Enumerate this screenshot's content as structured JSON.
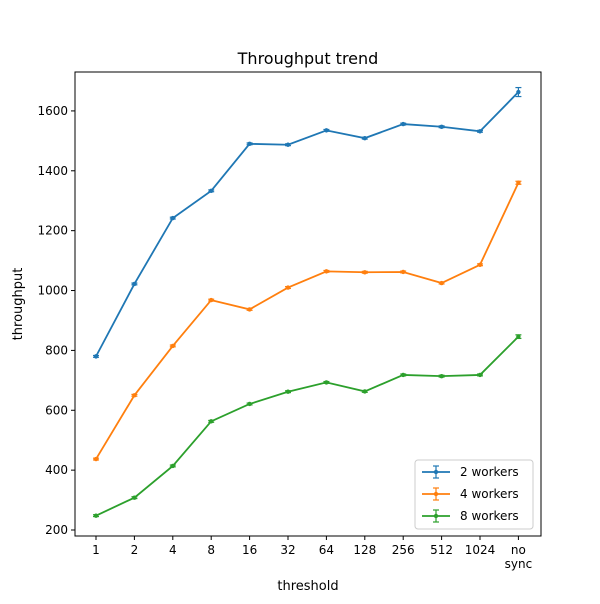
{
  "chart_data": {
    "type": "line",
    "title": "Throughput trend",
    "xlabel": "threshold",
    "ylabel": "throughput",
    "categories": [
      "1",
      "2",
      "4",
      "8",
      "16",
      "32",
      "64",
      "128",
      "256",
      "512",
      "1024",
      "no sync"
    ],
    "ylim": [
      180,
      1730
    ],
    "yticks": [
      200,
      400,
      600,
      800,
      1000,
      1200,
      1400,
      1600
    ],
    "grid": false,
    "legend_position": "lower-right",
    "series": [
      {
        "name": "2 workers",
        "color": "#1f77b4",
        "values": [
          780,
          1022,
          1242,
          1333,
          1490,
          1487,
          1535,
          1509,
          1556,
          1547,
          1532,
          1663
        ],
        "errors": [
          3,
          3,
          3,
          3,
          3,
          3,
          3,
          3,
          3,
          3,
          3,
          15
        ]
      },
      {
        "name": "4 workers",
        "color": "#ff7f0e",
        "values": [
          437,
          650,
          815,
          968,
          937,
          1010,
          1064,
          1061,
          1062,
          1025,
          1086,
          1360
        ],
        "errors": [
          3,
          3,
          3,
          3,
          3,
          3,
          3,
          3,
          3,
          3,
          3,
          5
        ]
      },
      {
        "name": "8 workers",
        "color": "#2ca02c",
        "values": [
          248,
          308,
          414,
          563,
          621,
          662,
          693,
          663,
          718,
          714,
          718,
          846
        ],
        "errors": [
          3,
          3,
          3,
          3,
          3,
          3,
          3,
          3,
          3,
          3,
          3,
          6
        ]
      }
    ]
  }
}
